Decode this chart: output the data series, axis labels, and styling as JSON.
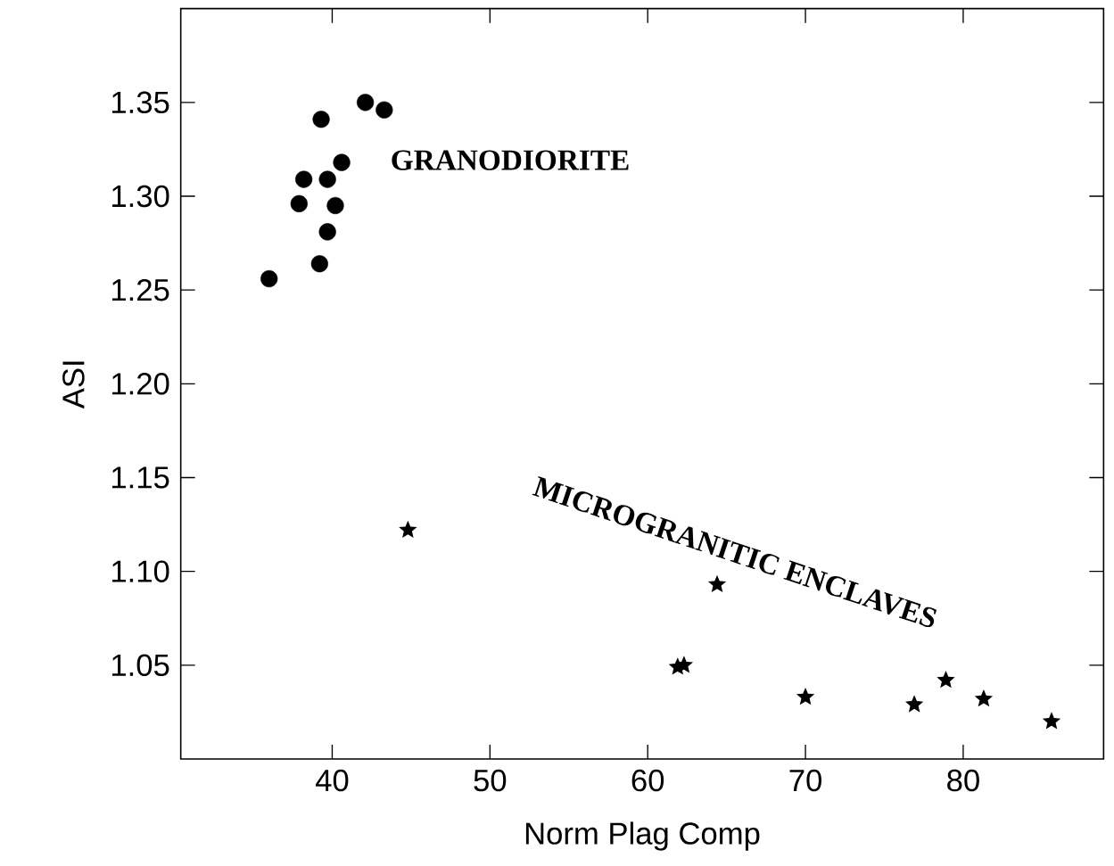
{
  "chart_data": {
    "type": "scatter",
    "xlabel": "Norm Plag Comp",
    "ylabel": "ASI",
    "xlim": [
      30.4,
      88.9
    ],
    "xticks": [
      40,
      50,
      60,
      70,
      80
    ],
    "ylim": [
      1.0,
      1.4
    ],
    "grid": false,
    "yticks": [
      1.05,
      {
        "value": 1.1,
        "label": "1.10"
      },
      1.15,
      {
        "value": 1.2,
        "label": "1.20"
      },
      1.25,
      {
        "value": 1.3,
        "label": "1.30"
      },
      1.35
    ],
    "annotations": [
      "GRANODIORITE",
      "MICROGRANITIC ENCLAVES"
    ],
    "series": [
      {
        "color": "#000000",
        "marker": "circle",
        "x": [
          36.0,
          37.9,
          38.2,
          39.2,
          39.3,
          39.7,
          39.7,
          40.2,
          40.6,
          42.1,
          43.3
        ],
        "values": [
          1.256,
          1.296,
          1.309,
          1.264,
          1.341,
          1.309,
          1.281,
          1.295,
          1.318,
          1.35,
          1.346
        ]
      },
      {
        "color": "#000000",
        "marker": "star",
        "x": [
          44.8,
          61.9,
          62.3,
          64.4,
          70.0,
          76.9,
          78.9,
          81.3,
          85.6
        ],
        "values": [
          1.122,
          1.049,
          1.05,
          1.093,
          1.033,
          1.029,
          1.042,
          1.032,
          1.02
        ]
      }
    ]
  }
}
